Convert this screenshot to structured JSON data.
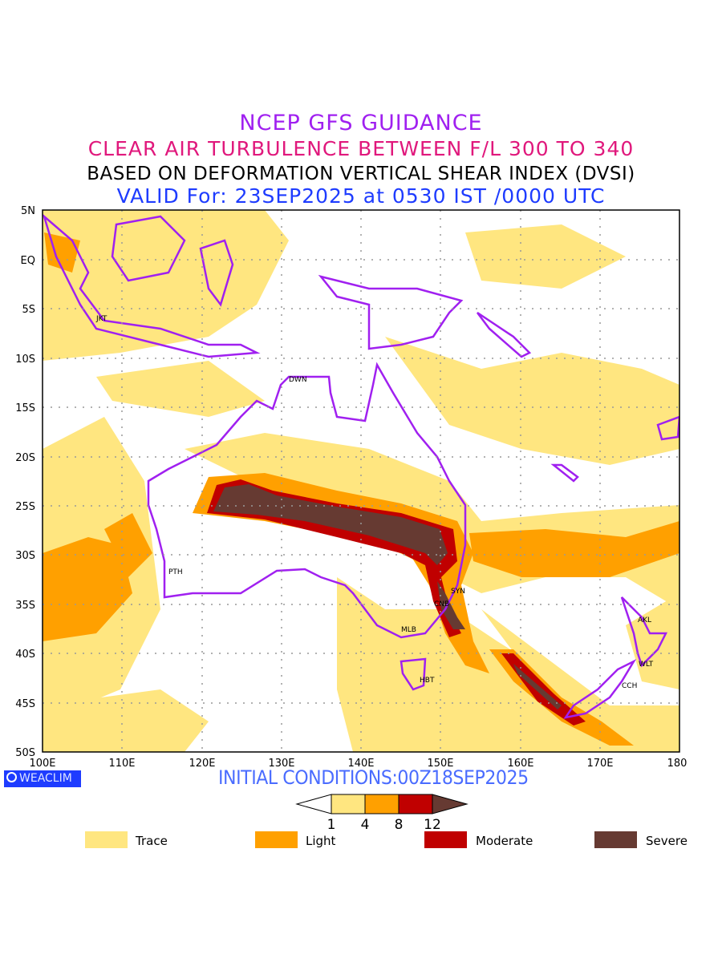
{
  "titles": {
    "line1": "NCEP GFS GUIDANCE",
    "line2": "CLEAR AIR TURBULENCE BETWEEN F/L 300 TO 340",
    "line3": "BASED ON DEFORMATION VERTICAL SHEAR INDEX (DVSI)",
    "line4": "VALID For: 23SEP2025 at 0530 IST /0000 UTC"
  },
  "map": {
    "lat_labels": [
      "5N",
      "EQ",
      "5S",
      "10S",
      "15S",
      "20S",
      "25S",
      "30S",
      "35S",
      "40S",
      "45S",
      "50S"
    ],
    "lon_labels": [
      "100E",
      "110E",
      "120E",
      "130E",
      "140E",
      "150E",
      "160E",
      "170E",
      "180"
    ],
    "cities": [
      {
        "code": "JKT"
      },
      {
        "code": "DWN"
      },
      {
        "code": "PTH"
      },
      {
        "code": "SYN"
      },
      {
        "code": "CNB"
      },
      {
        "code": "MLB"
      },
      {
        "code": "HBT"
      },
      {
        "code": "AKL"
      },
      {
        "code": "WLT"
      },
      {
        "code": "CCH"
      }
    ]
  },
  "footer": {
    "logo": "WEACLIM",
    "initial_conditions": "INITIAL CONDITIONS:00Z18SEP2025"
  },
  "colorbar": {
    "ticks": [
      "1",
      "4",
      "8",
      "12"
    ],
    "colors": {
      "trace": "#ffe680",
      "light": "#ffa000",
      "moderate": "#c00000",
      "severe": "#663a32"
    }
  },
  "legend": [
    {
      "label": "Trace",
      "color": "#ffe680"
    },
    {
      "label": "Light",
      "color": "#ffa000"
    },
    {
      "label": "Moderate",
      "color": "#c00000"
    },
    {
      "label": "Severe",
      "color": "#663a32"
    }
  ]
}
